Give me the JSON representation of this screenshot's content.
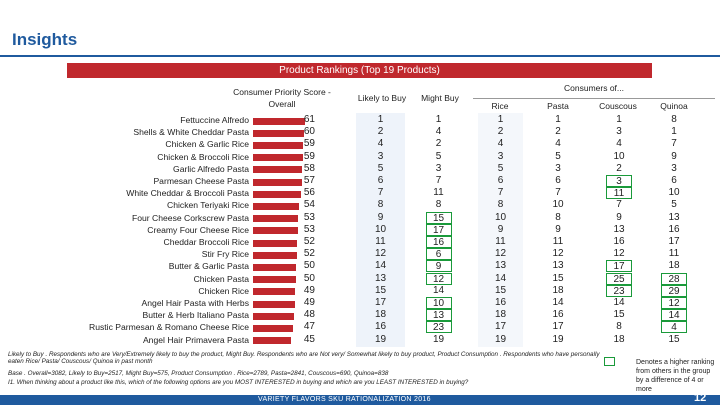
{
  "page": {
    "title": "Insights",
    "banner": "Product Rankings (Top 19 Products)",
    "footer": "VARIETY FLAVORS SKU RATIONALIZATION 2016",
    "page_number": "12",
    "colors": {
      "brand_blue": "#1f5a9e",
      "bar_red": "#c0282d",
      "highlight_green": "#1a9a3a"
    }
  },
  "headers": {
    "priority": "Consumer Priority Score - Overall",
    "likely": "Likely to Buy",
    "might": "Might Buy",
    "consumers_of": "Consumers of...",
    "rice": "Rice",
    "pasta": "Pasta",
    "couscous": "Couscous",
    "quinoa": "Quinoa"
  },
  "chart_data": {
    "type": "bar",
    "title": "Product Rankings (Top 19 Products)",
    "ylabel": "Consumer Priority Score - Overall",
    "xlim": [
      0,
      61
    ],
    "categories": [
      "Fettuccine Alfredo",
      "Shells & White Cheddar Pasta",
      "Chicken & Garlic Rice",
      "Chicken & Broccoli Rice",
      "Garlic Alfredo Pasta",
      "Parmesan Cheese Pasta",
      "White Cheddar & Broccoli Pasta",
      "Chicken Teriyaki Rice",
      "Four Cheese Corkscrew Pasta",
      "Creamy Four Cheese Rice",
      "Cheddar Broccoli Rice",
      "Stir Fry Rice",
      "Butter & Garlic Pasta",
      "Chicken Pasta",
      "Chicken Rice",
      "Angel Hair Pasta with Herbs",
      "Butter & Herb Italiano Pasta",
      "Rustic Parmesan & Romano Cheese Rice",
      "Angel Hair Primavera Pasta"
    ],
    "values": [
      61,
      60,
      59,
      59,
      58,
      57,
      56,
      54,
      53,
      53,
      52,
      52,
      50,
      50,
      49,
      49,
      48,
      47,
      45
    ]
  },
  "table": {
    "columns": [
      "likely",
      "might",
      "rice",
      "pasta",
      "couscous",
      "quinoa"
    ],
    "rows": [
      [
        "1",
        "1",
        "1",
        "1",
        "1",
        "8"
      ],
      [
        "2",
        "4",
        "2",
        "2",
        "3",
        "1"
      ],
      [
        "4",
        "2",
        "4",
        "4",
        "4",
        "7"
      ],
      [
        "3",
        "5",
        "3",
        "5",
        "10",
        "9"
      ],
      [
        "5",
        "3",
        "5",
        "3",
        "2",
        "3"
      ],
      [
        "6",
        "7",
        "6",
        "6",
        "3",
        "6"
      ],
      [
        "7",
        "11",
        "7",
        "7",
        "11",
        "10"
      ],
      [
        "8",
        "8",
        "8",
        "10",
        "7",
        "5"
      ],
      [
        "9",
        "15",
        "10",
        "8",
        "9",
        "13"
      ],
      [
        "10",
        "17",
        "9",
        "9",
        "13",
        "16"
      ],
      [
        "11",
        "16",
        "11",
        "11",
        "16",
        "17"
      ],
      [
        "12",
        "6",
        "12",
        "12",
        "12",
        "11"
      ],
      [
        "14",
        "9",
        "13",
        "13",
        "17",
        "18"
      ],
      [
        "13",
        "12",
        "14",
        "15",
        "25",
        "28"
      ],
      [
        "15",
        "14",
        "15",
        "18",
        "23",
        "29"
      ],
      [
        "17",
        "10",
        "16",
        "14",
        "14",
        "12"
      ],
      [
        "18",
        "13",
        "18",
        "16",
        "15",
        "14"
      ],
      [
        "16",
        "23",
        "17",
        "17",
        "8",
        "4"
      ],
      [
        "19",
        "19",
        "19",
        "19",
        "18",
        "15"
      ]
    ],
    "highlights": [
      [
        5,
        4
      ],
      [
        6,
        4
      ],
      [
        8,
        1
      ],
      [
        9,
        1
      ],
      [
        10,
        1
      ],
      [
        11,
        1
      ],
      [
        12,
        1
      ],
      [
        12,
        4
      ],
      [
        13,
        1
      ],
      [
        13,
        4
      ],
      [
        13,
        5
      ],
      [
        14,
        4
      ],
      [
        14,
        5
      ],
      [
        15,
        1
      ],
      [
        15,
        5
      ],
      [
        16,
        1
      ],
      [
        16,
        5
      ],
      [
        17,
        1
      ],
      [
        17,
        5
      ]
    ]
  },
  "footnotes": {
    "line1": "Likely to Buy . Respondents who are Very/Extremely likely to buy the product, Might Buy. Respondents who are Not very/ Somewhat likely to buy product, Product Consumption . Respondents who have personally",
    "line2": "eaten Rice/ Pasta/ Couscous/ Quinoa in past month",
    "line3": "Base . Overall=3082, Likely to Buy=2517, Might Buy=575, Product Consumption . Rice=2789, Pasta=2841, Couscous=690, Quinoa=838",
    "line4": "I1. When thinking about a product like this, which of the following options are you MOST INTERESTED in buying and which are you LEAST INTERESTED in buying?",
    "legend": "Denotes a higher ranking from others in the group by a difference of 4 or more"
  }
}
